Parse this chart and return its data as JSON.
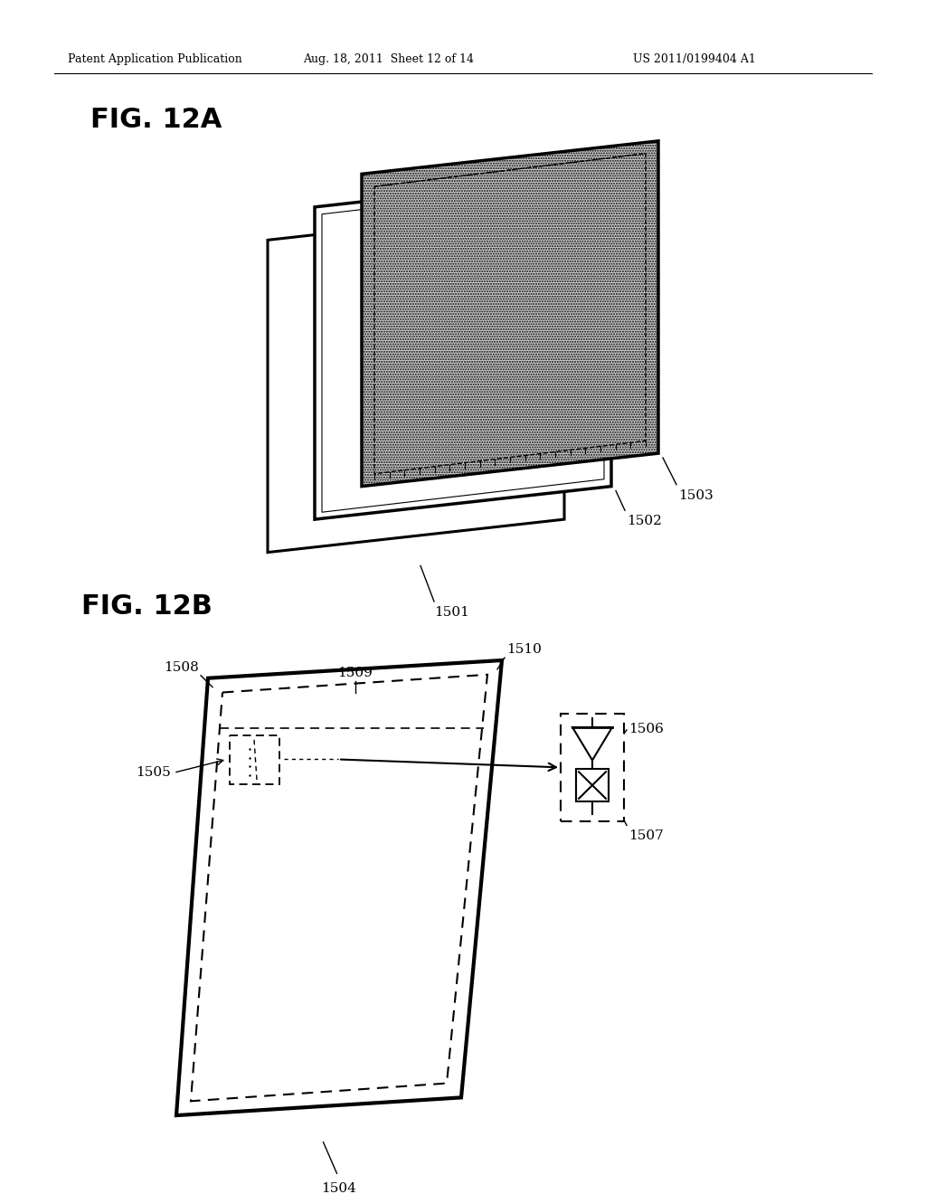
{
  "header_left": "Patent Application Publication",
  "header_mid": "Aug. 18, 2011  Sheet 12 of 14",
  "header_right": "US 2011/0199404 A1",
  "fig12a_label": "FIG. 12A",
  "fig12b_label": "FIG. 12B",
  "label_1501": "1501",
  "label_1502": "1502",
  "label_1503": "1503",
  "label_1504": "1504",
  "label_1505": "1505",
  "label_1506": "1506",
  "label_1507": "1507",
  "label_1508": "1508",
  "label_1509": "1509",
  "label_1510": "1510",
  "bg_color": "#ffffff"
}
